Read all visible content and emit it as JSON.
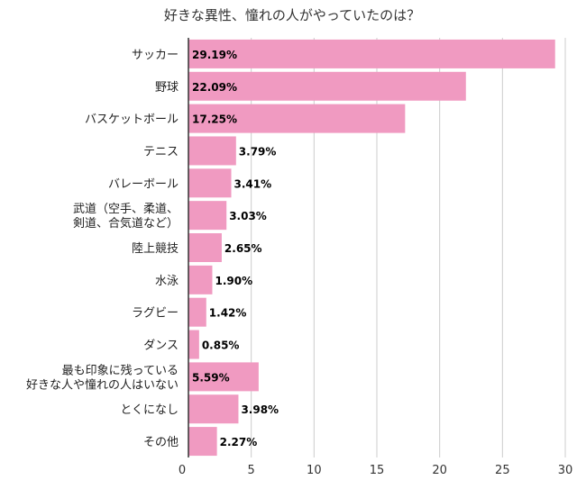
{
  "chart_data": {
    "type": "bar",
    "orientation": "horizontal",
    "title": "好きな異性、憧れの人がやっていたのは？",
    "xlabel": "",
    "ylabel": "",
    "xlim": [
      0,
      30
    ],
    "xticks": [
      0,
      5,
      10,
      15,
      20,
      25,
      30
    ],
    "grid": true,
    "legend": "none",
    "bar_color": "#f09ac1",
    "categories": [
      [
        "サッカー"
      ],
      [
        "野球"
      ],
      [
        "バスケットボール"
      ],
      [
        "テニス"
      ],
      [
        "バレーボール"
      ],
      [
        "武道（空手、柔道、",
        "剣道、合気道など）"
      ],
      [
        "陸上競技"
      ],
      [
        "水泳"
      ],
      [
        "ラグビー"
      ],
      [
        "ダンス"
      ],
      [
        "最も印象に残っている",
        "好きな人や憧れの人はいない"
      ],
      [
        "とくになし"
      ],
      [
        "その他"
      ]
    ],
    "values": [
      29.19,
      22.09,
      17.25,
      3.79,
      3.41,
      3.03,
      2.65,
      1.9,
      1.42,
      0.85,
      5.59,
      3.98,
      2.27
    ],
    "value_labels": [
      "29.19%",
      "22.09%",
      "17.25%",
      "3.79%",
      "3.41%",
      "3.03%",
      "2.65%",
      "1.90%",
      "1.42%",
      "0.85%",
      "5.59%",
      "3.98%",
      "2.27%"
    ]
  }
}
